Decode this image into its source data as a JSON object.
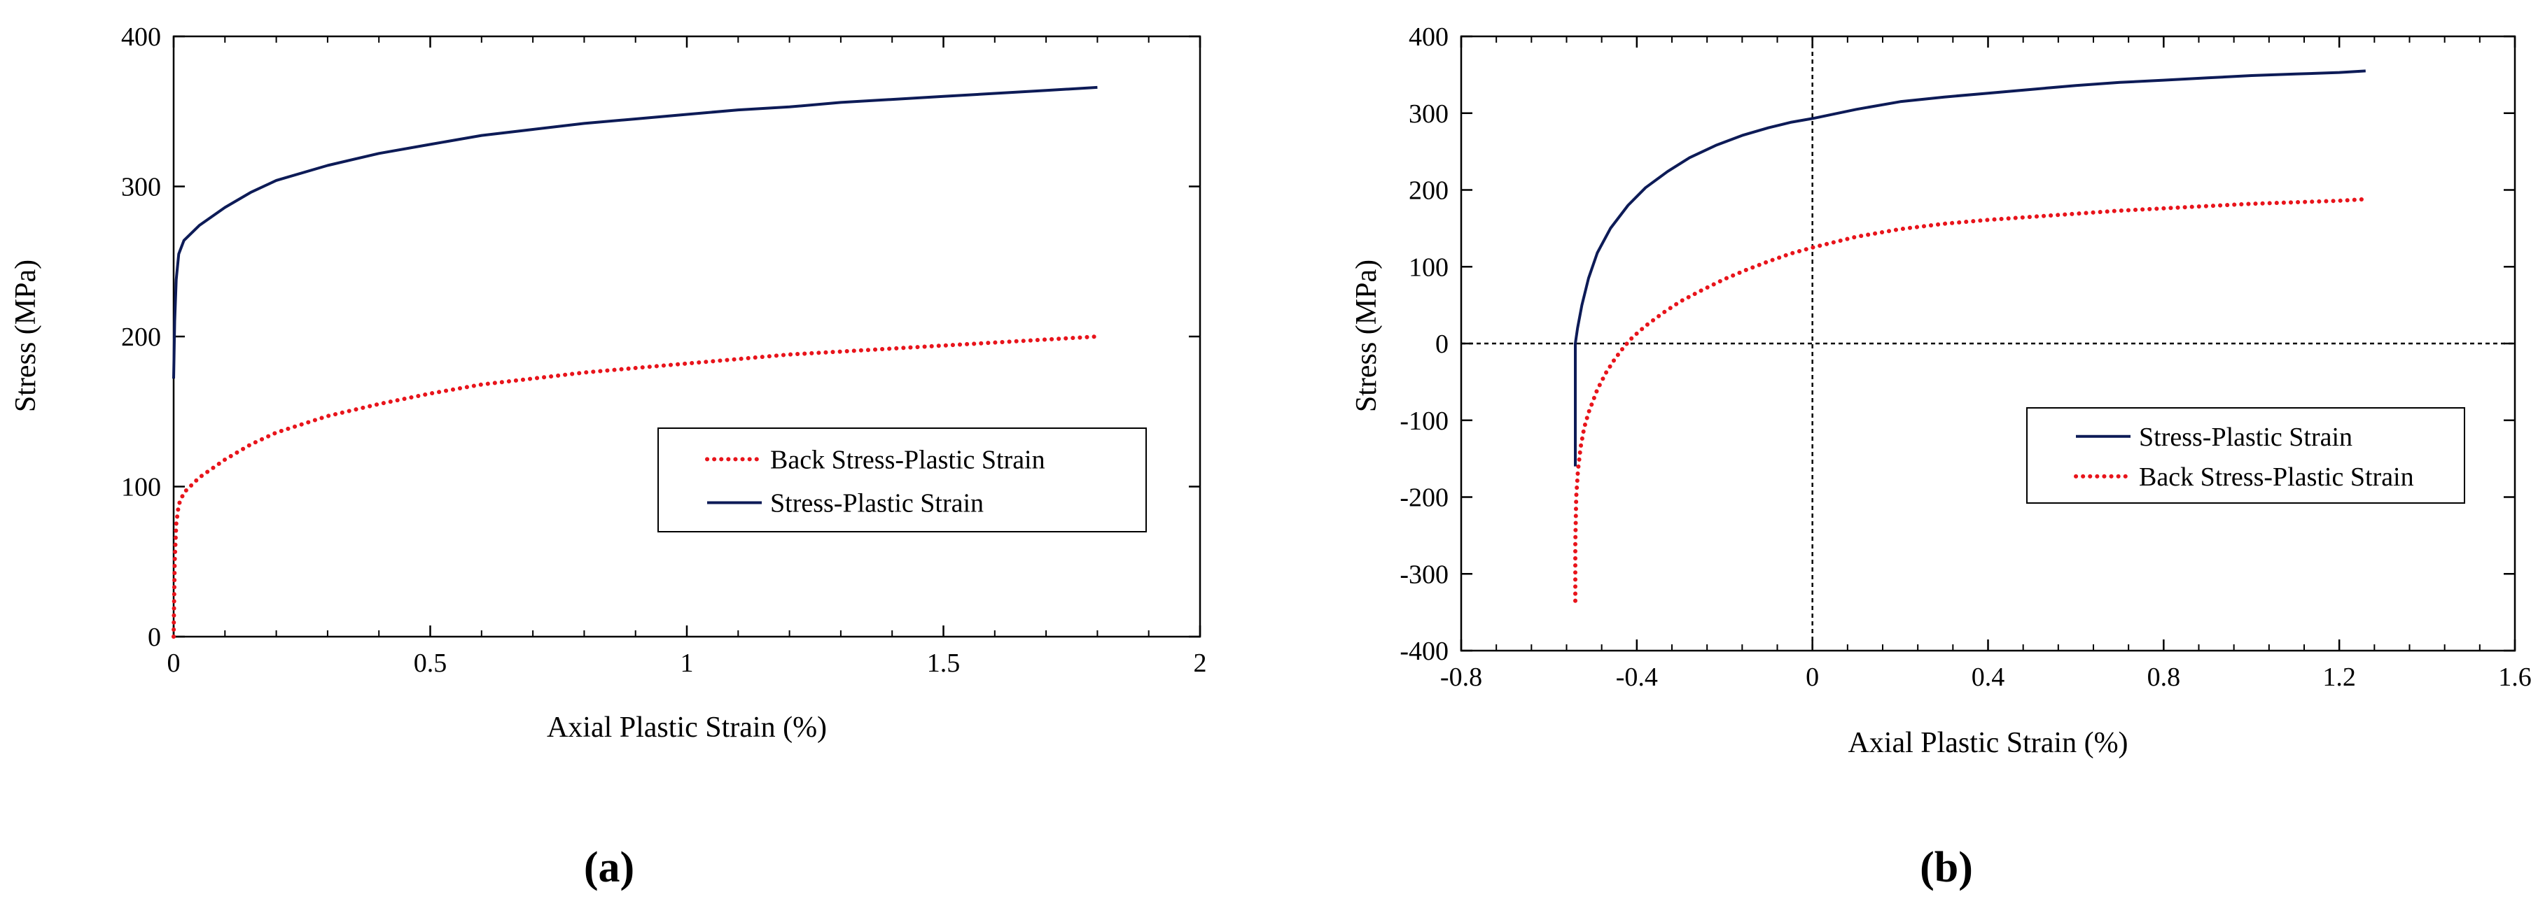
{
  "colors": {
    "stress": "#0d1b57",
    "back_stress": "#e8141b",
    "axis": "#000000"
  },
  "chart_data": [
    {
      "panel": "a",
      "type": "line",
      "title": "",
      "panel_label": "(a)",
      "xlabel": "Axial Plastic Strain (%)",
      "ylabel": "Stress (MPa)",
      "xlim": [
        0,
        2
      ],
      "ylim": [
        0,
        400
      ],
      "xticks": [
        0,
        0.5,
        1,
        1.5,
        2
      ],
      "xtick_labels": [
        "0",
        "0.5",
        "1",
        "1.5",
        "2"
      ],
      "yticks": [
        0,
        100,
        200,
        300,
        400
      ],
      "ytick_labels": [
        "0",
        "100",
        "200",
        "300",
        "400"
      ],
      "grid": false,
      "legend_position": "right-middle",
      "legend_order": [
        "back_stress",
        "stress"
      ],
      "series": [
        {
          "key": "stress",
          "name": "Stress-Plastic Strain",
          "style": "solid",
          "x": [
            0,
            0.002,
            0.005,
            0.01,
            0.02,
            0.05,
            0.1,
            0.15,
            0.2,
            0.3,
            0.4,
            0.5,
            0.6,
            0.7,
            0.8,
            0.9,
            1.0,
            1.1,
            1.2,
            1.3,
            1.4,
            1.5,
            1.6,
            1.7,
            1.8
          ],
          "y": [
            172,
            210,
            238,
            255,
            264,
            274,
            286,
            296,
            304,
            314,
            322,
            328,
            334,
            338,
            342,
            345,
            348,
            351,
            353,
            356,
            358,
            360,
            362,
            364,
            366
          ]
        },
        {
          "key": "back_stress",
          "name": "Back Stress-Plastic Strain",
          "style": "dotted",
          "x": [
            0,
            0.002,
            0.005,
            0.01,
            0.02,
            0.05,
            0.1,
            0.15,
            0.2,
            0.3,
            0.4,
            0.5,
            0.6,
            0.7,
            0.8,
            0.9,
            1.0,
            1.1,
            1.2,
            1.3,
            1.4,
            1.5,
            1.6,
            1.7,
            1.8
          ],
          "y": [
            0,
            50,
            75,
            88,
            96,
            106,
            118,
            128,
            136,
            147,
            155,
            162,
            168,
            172,
            176,
            179,
            182,
            185,
            188,
            190,
            192,
            194,
            196,
            198,
            200
          ]
        }
      ]
    },
    {
      "panel": "b",
      "type": "line",
      "title": "",
      "panel_label": "(b)",
      "xlabel": "Axial Plastic Strain (%)",
      "ylabel": "Stress (MPa)",
      "xlim": [
        -0.8,
        1.6
      ],
      "ylim": [
        -400,
        400
      ],
      "xticks": [
        -0.8,
        -0.4,
        0,
        0.4,
        0.8,
        1.2,
        1.6
      ],
      "xtick_labels": [
        "-0.8",
        "-0.4",
        "0",
        "0.4",
        "0.8",
        "1.2",
        "1.6"
      ],
      "yticks": [
        -400,
        -300,
        -200,
        -100,
        0,
        100,
        200,
        300,
        400
      ],
      "ytick_labels": [
        "-400",
        "-300",
        "-200",
        "-100",
        "0",
        "100",
        "200",
        "300",
        "400"
      ],
      "grid": false,
      "zero_lines": true,
      "legend_position": "right-middle",
      "legend_order": [
        "stress",
        "back_stress"
      ],
      "series": [
        {
          "key": "stress",
          "name": "Stress-Plastic Strain",
          "style": "solid",
          "x": [
            -0.54,
            -0.54,
            -0.535,
            -0.525,
            -0.51,
            -0.49,
            -0.46,
            -0.42,
            -0.38,
            -0.33,
            -0.28,
            -0.22,
            -0.16,
            -0.1,
            -0.05,
            0,
            0.1,
            0.2,
            0.3,
            0.4,
            0.5,
            0.6,
            0.7,
            0.8,
            0.9,
            1.0,
            1.1,
            1.2,
            1.26
          ],
          "y": [
            -160,
            0,
            20,
            50,
            85,
            118,
            150,
            180,
            203,
            224,
            242,
            258,
            271,
            281,
            288,
            293,
            305,
            315,
            321,
            326,
            331,
            336,
            340,
            343,
            346,
            349,
            351,
            353,
            355
          ]
        },
        {
          "key": "back_stress",
          "name": "Back Stress-Plastic Strain",
          "style": "dotted",
          "x": [
            -0.54,
            -0.54,
            -0.538,
            -0.534,
            -0.528,
            -0.52,
            -0.51,
            -0.49,
            -0.47,
            -0.45,
            -0.43,
            -0.41,
            -0.38,
            -0.34,
            -0.3,
            -0.25,
            -0.2,
            -0.15,
            -0.1,
            -0.05,
            0,
            0.1,
            0.2,
            0.3,
            0.4,
            0.5,
            0.6,
            0.7,
            0.8,
            0.9,
            1.0,
            1.1,
            1.2,
            1.26
          ],
          "y": [
            -335,
            -260,
            -200,
            -165,
            -135,
            -110,
            -90,
            -60,
            -38,
            -20,
            -5,
            8,
            23,
            40,
            55,
            70,
            84,
            96,
            107,
            117,
            125,
            139,
            149,
            156,
            161,
            165,
            169,
            173,
            176,
            179,
            182,
            184,
            186,
            188
          ]
        }
      ]
    }
  ]
}
